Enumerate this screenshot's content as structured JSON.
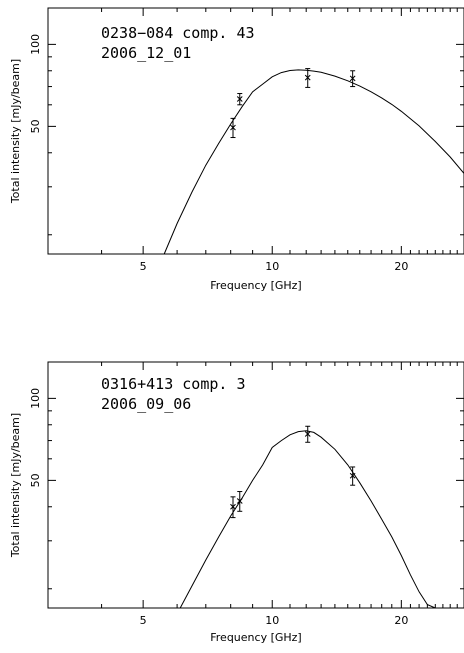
{
  "chart_data": [
    {
      "type": "scatter",
      "title_line1": "0238−084 comp. 43",
      "title_line2": "2006_12_01",
      "xlabel": "Frequency [GHz]",
      "ylabel": "Total intensity [mJy/beam]",
      "xscale": "log",
      "yscale": "log",
      "xlim": [
        3.0,
        28.0
      ],
      "ylim": [
        17,
        136
      ],
      "x_ticks": [
        5,
        10,
        20
      ],
      "y_ticks": [
        50,
        100
      ],
      "points": [
        {
          "x": 8.1,
          "y": 49.5,
          "err": 4
        },
        {
          "x": 8.4,
          "y": 63,
          "err": 3
        },
        {
          "x": 12.1,
          "y": 75.5,
          "err": 6
        },
        {
          "x": 15.4,
          "y": 75,
          "err": 5
        }
      ],
      "fit_curve": {
        "x": [
          5.6,
          6.0,
          6.5,
          7.0,
          7.5,
          8.0,
          8.5,
          9.0,
          9.5,
          10.0,
          10.5,
          11.0,
          11.5,
          12.0,
          12.5,
          13.0,
          14.0,
          15.0,
          16.0,
          17.0,
          18.0,
          19.0,
          20.0,
          22.0,
          24.0,
          26.0,
          28.0
        ],
        "y": [
          17.0,
          22.0,
          28.7,
          36.0,
          43.3,
          51.0,
          59.0,
          67.0,
          71.5,
          76.0,
          78.8,
          80.2,
          80.6,
          80.4,
          79.8,
          79.0,
          76.5,
          73.5,
          70.3,
          67.0,
          63.6,
          60.2,
          56.8,
          50.2,
          44.0,
          38.6,
          33.6
        ]
      }
    },
    {
      "type": "scatter",
      "title_line1": "0316+413 comp. 3",
      "title_line2": "2006_09_06",
      "xlabel": "Frequency [GHz]",
      "ylabel": "Total intensity [mJy/beam]",
      "xscale": "log",
      "yscale": "log",
      "xlim": [
        3.0,
        28.0
      ],
      "ylim": [
        17,
        136
      ],
      "x_ticks": [
        5,
        10,
        20
      ],
      "y_ticks": [
        50,
        100
      ],
      "points": [
        {
          "x": 8.1,
          "y": 40,
          "err": 3.5
        },
        {
          "x": 8.4,
          "y": 42,
          "err": 3.5
        },
        {
          "x": 12.1,
          "y": 74,
          "err": 5
        },
        {
          "x": 15.4,
          "y": 52,
          "err": 4
        }
      ],
      "fit_curve": {
        "x": [
          6.1,
          6.5,
          7.0,
          7.5,
          8.0,
          8.5,
          9.0,
          9.5,
          10.0,
          10.5,
          11.0,
          11.5,
          12.0,
          12.5,
          13.0,
          14.0,
          15.0,
          16.0,
          17.0,
          18.0,
          19.0,
          20.0,
          21.0,
          22.0,
          23.0,
          24.0
        ],
        "y": [
          17.0,
          20.5,
          25.5,
          31.0,
          37.0,
          43.0,
          50.0,
          57.0,
          66.0,
          70.0,
          73.5,
          75.5,
          76.0,
          75.0,
          72.0,
          65.0,
          57.0,
          49.0,
          42.0,
          36.0,
          31.0,
          26.5,
          22.5,
          19.5,
          17.5,
          17.0
        ]
      }
    }
  ]
}
